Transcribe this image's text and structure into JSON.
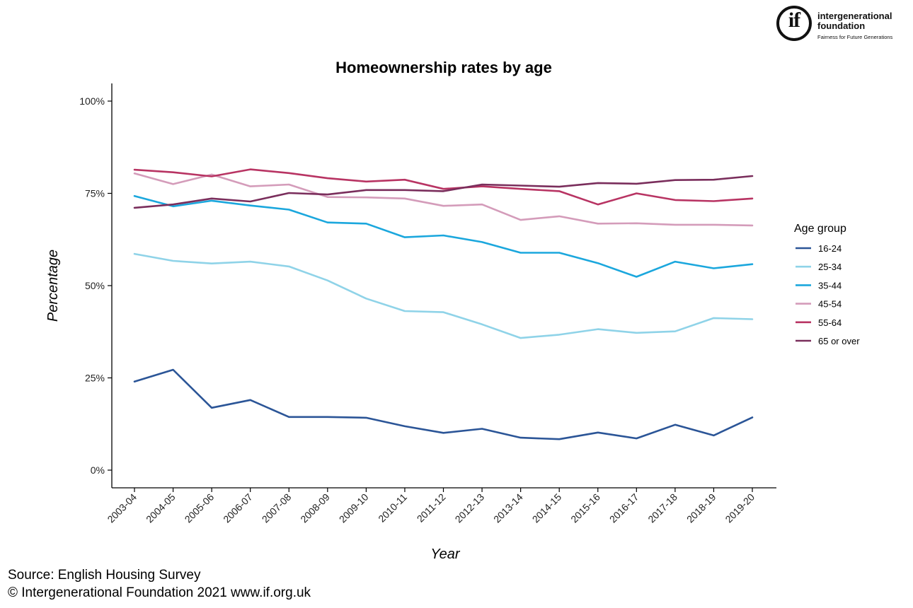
{
  "logo": {
    "glyph": "if",
    "name": "intergenerational foundation",
    "tagline": "Fairness for Future Generations"
  },
  "footer": {
    "source": "Source: English Housing Survey",
    "copyright": "© Intergenerational Foundation 2021 www.if.org.uk"
  },
  "chart_data": {
    "type": "line",
    "title": "Homeownership rates by age",
    "xlabel": "Year",
    "ylabel": "Percentage",
    "ylim": [
      0,
      100
    ],
    "yticks": [
      0,
      25,
      50,
      75,
      100
    ],
    "ytick_labels": [
      "0%",
      "25%",
      "50%",
      "75%",
      "100%"
    ],
    "grid": false,
    "legend": {
      "title": "Age group",
      "placement": "right"
    },
    "categories": [
      "2003-04",
      "2004-05",
      "2005-06",
      "2006-07",
      "2007-08",
      "2008-09",
      "2009-10",
      "2010-11",
      "2011-12",
      "2012-13",
      "2013-14",
      "2014-15",
      "2015-16",
      "2016-17",
      "2017-18",
      "2018-19",
      "2019-20"
    ],
    "series": [
      {
        "name": "16-24",
        "color": "#2b5597",
        "values": [
          24.0,
          27.2,
          16.9,
          19.0,
          14.4,
          14.4,
          14.2,
          11.9,
          10.1,
          11.2,
          8.8,
          8.4,
          10.2,
          8.6,
          12.3,
          9.4,
          14.3
        ]
      },
      {
        "name": "25-34",
        "color": "#8fd3e8",
        "values": [
          58.6,
          56.7,
          56.0,
          56.5,
          55.2,
          51.4,
          46.5,
          43.1,
          42.8,
          39.5,
          35.8,
          36.7,
          38.2,
          37.2,
          37.6,
          41.2,
          40.9
        ]
      },
      {
        "name": "35-44",
        "color": "#1ba7dd",
        "values": [
          74.3,
          71.5,
          73.0,
          71.7,
          70.6,
          67.1,
          66.8,
          63.1,
          63.6,
          61.8,
          58.9,
          58.9,
          56.1,
          52.4,
          56.5,
          54.7,
          55.8
        ]
      },
      {
        "name": "45-54",
        "color": "#d49cba",
        "values": [
          80.4,
          77.5,
          80.1,
          76.9,
          77.4,
          74.0,
          73.9,
          73.6,
          71.6,
          72.0,
          67.8,
          68.8,
          66.8,
          66.9,
          66.5,
          66.5,
          66.3
        ]
      },
      {
        "name": "55-64",
        "color": "#b83463",
        "values": [
          81.4,
          80.7,
          79.6,
          81.5,
          80.5,
          79.1,
          78.2,
          78.7,
          76.2,
          76.9,
          76.2,
          75.6,
          72.0,
          75.0,
          73.2,
          72.9,
          73.6
        ]
      },
      {
        "name": "65 or over",
        "color": "#7a2e5c",
        "values": [
          71.1,
          72.0,
          73.6,
          72.8,
          75.1,
          74.7,
          75.9,
          75.9,
          75.6,
          77.4,
          77.1,
          76.8,
          77.8,
          77.6,
          78.6,
          78.7,
          79.7
        ]
      }
    ]
  }
}
